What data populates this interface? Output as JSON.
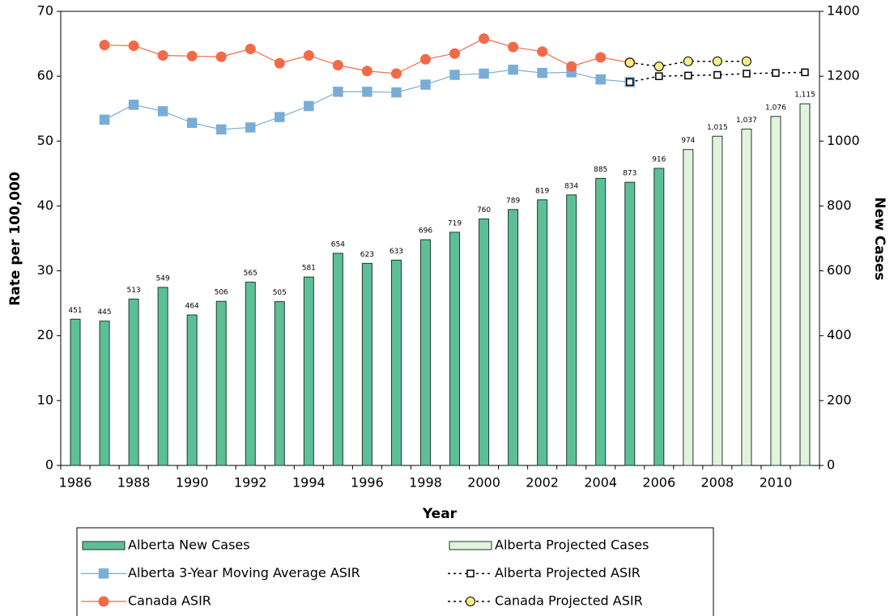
{
  "chart_data": {
    "type": "combo",
    "xlabel": "Year",
    "ylabel": "Rate per 100,000",
    "y2label": "New Cases",
    "categories": [
      1986,
      null,
      1988,
      null,
      1990,
      null,
      1992,
      null,
      1994,
      null,
      1996,
      null,
      1998,
      null,
      2000,
      null,
      2002,
      null,
      2004,
      null,
      2006,
      null,
      2008,
      null,
      2010,
      null
    ],
    "ylim": [
      0,
      70
    ],
    "yticks": [
      0,
      10,
      20,
      30,
      40,
      50,
      60,
      70
    ],
    "y2lim": [
      0,
      1400
    ],
    "y2ticks": [
      0,
      200,
      400,
      600,
      800,
      1000,
      1200,
      1400
    ],
    "grid": false,
    "series": [
      {
        "name": "Alberta New Cases",
        "type": "bar",
        "axis": "y2",
        "color": "#5cbf98",
        "values": [
          451,
          445,
          513,
          549,
          464,
          506,
          565,
          505,
          581,
          654,
          623,
          633,
          696,
          719,
          760,
          789,
          819,
          834,
          885,
          873,
          916,
          null,
          null,
          null,
          null,
          null
        ]
      },
      {
        "name": "Alberta Projected Cases",
        "type": "bar",
        "axis": "y2",
        "color": "#e2f3dc",
        "values": [
          null,
          null,
          null,
          null,
          null,
          null,
          null,
          null,
          null,
          null,
          null,
          null,
          null,
          null,
          null,
          null,
          null,
          null,
          null,
          null,
          null,
          974,
          1015,
          1037,
          1076,
          1115
        ],
        "value_labels": [
          null,
          null,
          null,
          null,
          null,
          null,
          null,
          null,
          null,
          null,
          null,
          null,
          null,
          null,
          null,
          null,
          null,
          null,
          null,
          null,
          null,
          "974",
          "1,015",
          "1,037",
          "1,076",
          "1,115"
        ]
      },
      {
        "name": "Alberta 3-Year Moving Average ASIR",
        "type": "line",
        "axis": "y",
        "color": "#7aadd6",
        "marker": "square",
        "dashed": false,
        "values": [
          null,
          53.3,
          55.6,
          54.6,
          52.8,
          51.8,
          52.1,
          53.7,
          55.4,
          57.6,
          57.6,
          57.5,
          58.7,
          60.2,
          60.4,
          61.0,
          60.5,
          60.6,
          59.5,
          59.1,
          null,
          null,
          null,
          null,
          null,
          null
        ]
      },
      {
        "name": "Alberta Projected ASIR",
        "type": "line",
        "axis": "y",
        "color": "#000000",
        "marker_fill": "#ffffff",
        "marker": "square",
        "dashed": true,
        "values": [
          null,
          null,
          null,
          null,
          null,
          null,
          null,
          null,
          null,
          null,
          null,
          null,
          null,
          null,
          null,
          null,
          null,
          null,
          null,
          59.1,
          60.0,
          60.1,
          60.2,
          60.4,
          60.5,
          60.6
        ]
      },
      {
        "name": "Canada ASIR",
        "type": "line",
        "axis": "y",
        "color": "#f26a47",
        "marker": "circle",
        "dashed": false,
        "values": [
          null,
          64.8,
          64.7,
          63.2,
          63.1,
          63.0,
          64.2,
          62.0,
          63.2,
          61.7,
          60.8,
          60.4,
          62.6,
          63.5,
          65.8,
          64.5,
          63.8,
          61.5,
          62.9,
          62.1,
          null,
          null,
          null,
          null,
          null,
          null
        ]
      },
      {
        "name": "Canada Projected ASIR",
        "type": "line",
        "axis": "y",
        "color": "#000000",
        "marker_fill": "#f6ec8a",
        "marker": "circle",
        "dashed": true,
        "values": [
          null,
          null,
          null,
          null,
          null,
          null,
          null,
          null,
          null,
          null,
          null,
          null,
          null,
          null,
          null,
          null,
          null,
          null,
          null,
          62.1,
          61.5,
          62.3,
          62.3,
          62.3,
          null,
          null
        ]
      }
    ]
  }
}
